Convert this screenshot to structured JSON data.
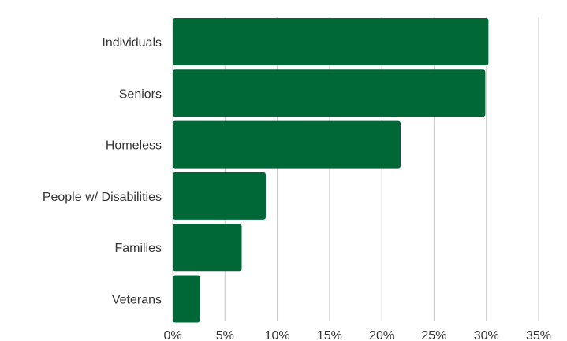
{
  "chart_data": {
    "type": "bar",
    "orientation": "horizontal",
    "categories": [
      "Individuals",
      "Seniors",
      "Homeless",
      "People w/ Disabilities",
      "Families",
      "Veterans"
    ],
    "values": [
      30.2,
      29.9,
      21.8,
      8.9,
      6.6,
      2.6
    ],
    "unit": "%",
    "xlim": [
      0,
      35
    ],
    "ticks": [
      0,
      5,
      10,
      15,
      20,
      25,
      30,
      35
    ],
    "tick_labels": [
      "0%",
      "5%",
      "10%",
      "15%",
      "20%",
      "25%",
      "30%",
      "35%"
    ],
    "grid": "vertical",
    "colors": {
      "bar": "#006837",
      "grid": "#c8c8c8",
      "text": "#333333"
    }
  }
}
